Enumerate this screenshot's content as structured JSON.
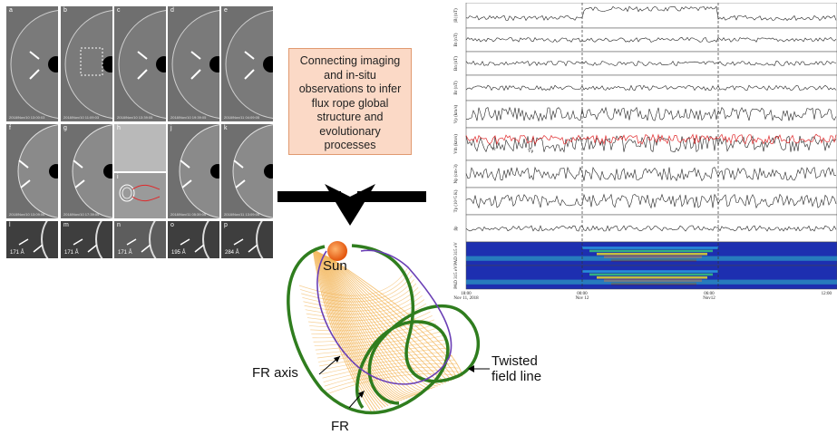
{
  "callout": {
    "lines": [
      "Connecting imaging",
      "and in-situ",
      "observations to infer",
      "flux rope global",
      "structure and",
      "evolutionary",
      "processes"
    ]
  },
  "imaging_panels": {
    "letters": [
      "a",
      "b",
      "c",
      "d",
      "e",
      "f",
      "g",
      "h",
      "i",
      "j",
      "k",
      "l",
      "m",
      "n",
      "o",
      "p"
    ],
    "timestamps": [
      "2018/Nov/10 13:00:03",
      "2018/Nov/10 11:09:03",
      "2018/Nov/10 13:39:05",
      "2018/Nov/10 19:39:05",
      "2018/Nov/11 04:09:05",
      "2018/Nov/10 13:09:06",
      "2018/Nov/10 17:39:05",
      "",
      "",
      "2018/Nov/11 05:39:05",
      "2018/Nov/11 13:09:05",
      "",
      "",
      "",
      "",
      ""
    ],
    "wavelengths": [
      "171 Å",
      "171 Å",
      "171 Å",
      "195 Å",
      "284 Å"
    ]
  },
  "schematic": {
    "sun_label": "Sun",
    "fr_axis_label": "FR axis",
    "twisted_label_line1": "Twisted",
    "twisted_label_line2": "field line",
    "fr_label": "FR"
  },
  "insitu": {
    "panel_labels": [
      "|B| (nT)",
      "Bt (nT)",
      "Bn (nT)",
      "Br (nT)",
      "Vp (km/s)",
      "Vth (km/s)",
      "Np (cm-3)",
      "Tp (10^5 K)",
      "βp",
      "PAD 315 eV",
      "PAD 315 eV"
    ],
    "series_labels": [
      "Vr",
      "Vp"
    ],
    "time_labels": [
      "18:00\nNov 11, 2018",
      "00:00\nNov 12",
      "06:00\nNov12",
      "12:00"
    ],
    "colors": {
      "red_series": "#e0282a",
      "black_series": "#222222"
    }
  },
  "colors": {
    "callout_bg": "#fbd9c6",
    "callout_border": "#e19a70",
    "green_line": "#2f7d1e",
    "purple_axis": "#6a3fb5",
    "flux_rope": "#f2b04e",
    "sun": "#f06a10"
  }
}
